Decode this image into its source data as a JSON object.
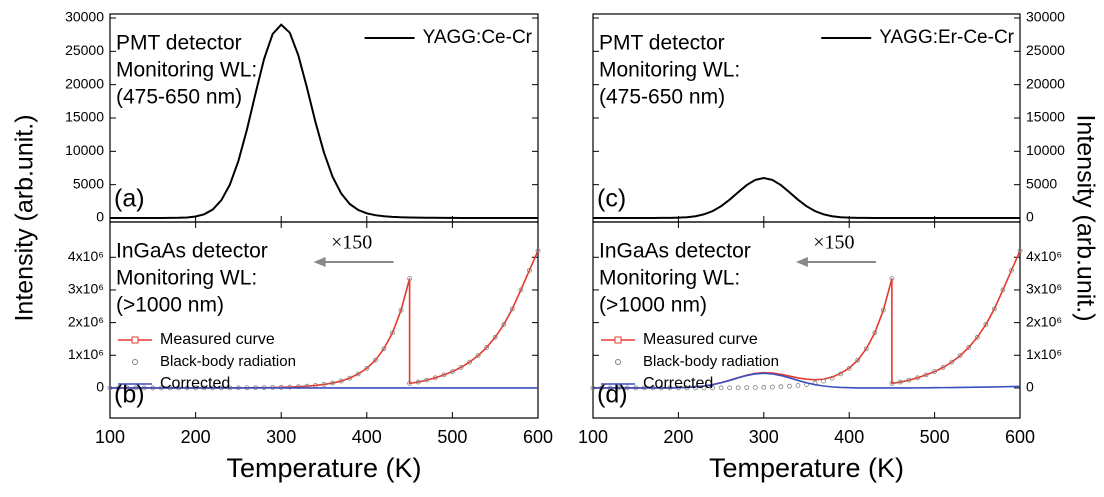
{
  "chart_data": [
    {
      "type": "line",
      "text_lines": [
        "PMT detector",
        "Monitoring WL:",
        "(475-650 nm)"
      ],
      "panel_label": "(a)",
      "ylabel": "Intensity (arb.unit.)",
      "yaxis_side": "left",
      "x": [
        100,
        110,
        120,
        130,
        140,
        150,
        160,
        170,
        180,
        190,
        200,
        210,
        220,
        230,
        240,
        250,
        260,
        270,
        280,
        290,
        300,
        310,
        320,
        330,
        340,
        350,
        360,
        370,
        380,
        390,
        400,
        410,
        420,
        430,
        440,
        450,
        460,
        470,
        480,
        490,
        500,
        510,
        520,
        530,
        540,
        550,
        560,
        570,
        580,
        590,
        600
      ],
      "series": [
        {
          "name": "YAGG:Ce-Cr",
          "color": "#000000",
          "values": [
            0,
            0,
            0,
            0,
            0,
            0,
            0,
            10,
            30,
            80,
            220,
            555,
            1270,
            2650,
            5000,
            8560,
            13280,
            18680,
            23860,
            27600,
            29000,
            27800,
            24400,
            19600,
            14400,
            9800,
            6200,
            3700,
            2100,
            1200,
            700,
            420,
            260,
            170,
            110,
            80,
            60,
            40,
            30,
            20,
            10,
            0,
            0,
            0,
            0,
            0,
            0,
            0,
            0,
            0,
            0
          ]
        }
      ],
      "xlim": [
        100,
        600
      ],
      "ylim": [
        -600,
        30600
      ],
      "yticks": [
        0,
        5000,
        10000,
        15000,
        20000,
        25000,
        30000
      ]
    },
    {
      "type": "line",
      "text_lines": [
        "InGaAs detector",
        "Monitoring WL:",
        "(>1000 nm)"
      ],
      "panel_label": "(b)",
      "note": "×150",
      "xlabel": "Temperature (K)",
      "yaxis_side": "left",
      "x": [
        100,
        110,
        120,
        130,
        140,
        150,
        160,
        170,
        180,
        190,
        200,
        210,
        220,
        230,
        240,
        250,
        260,
        270,
        280,
        290,
        300,
        310,
        320,
        330,
        340,
        350,
        360,
        370,
        380,
        390,
        400,
        410,
        420,
        430,
        440,
        450,
        450,
        460,
        470,
        480,
        490,
        500,
        510,
        520,
        530,
        540,
        550,
        560,
        570,
        580,
        590,
        600
      ],
      "series": [
        {
          "name": "Measured curve",
          "color": "#e8392e",
          "marker": "square",
          "values": [
            0,
            0,
            0,
            0,
            0,
            0,
            0,
            0,
            0,
            0,
            0,
            0,
            0,
            0,
            0,
            3500,
            5000,
            7000,
            10000,
            14000,
            19000,
            27000,
            38000,
            54000,
            76000,
            107000,
            150000,
            210000,
            300000,
            430000,
            600000,
            850000,
            1200000,
            1690000,
            2380000,
            3350000,
            140000,
            180000,
            240000,
            310000,
            400000,
            500000,
            630000,
            790000,
            990000,
            1240000,
            1550000,
            1940000,
            2420000,
            3000000,
            3600000,
            4200000
          ]
        },
        {
          "name": "Black-body radiation",
          "color": "#808080",
          "marker": "circle",
          "linestyle": "none",
          "values": [
            0,
            0,
            0,
            0,
            0,
            0,
            0,
            0,
            0,
            0,
            0,
            0,
            0,
            0,
            0,
            3500,
            5000,
            7000,
            10000,
            14000,
            19000,
            27000,
            38000,
            54000,
            76000,
            107000,
            150000,
            210000,
            300000,
            430000,
            600000,
            850000,
            1200000,
            1690000,
            2380000,
            3350000,
            140000,
            180000,
            240000,
            310000,
            400000,
            500000,
            630000,
            790000,
            990000,
            1240000,
            1550000,
            1940000,
            2420000,
            3000000,
            3600000,
            4200000
          ]
        },
        {
          "name": "Corrected",
          "color": "#3a4fc0",
          "values": [
            0,
            0,
            0,
            0,
            0,
            0,
            0,
            0,
            0,
            0,
            0,
            0,
            0,
            0,
            0,
            0,
            0,
            0,
            0,
            0,
            0,
            0,
            0,
            0,
            0,
            0,
            0,
            0,
            0,
            0,
            0,
            0,
            0,
            0,
            0,
            0,
            0,
            0,
            0,
            0,
            0,
            0,
            0,
            0,
            0,
            0,
            0,
            0,
            0,
            0,
            0,
            0
          ]
        }
      ],
      "xlim": [
        100,
        600
      ],
      "xticks": [
        100,
        200,
        300,
        400,
        500,
        600
      ],
      "ylim": [
        -920000,
        5080000
      ],
      "yticks": [
        0,
        {
          "value": 1000000,
          "label": "1x10⁶"
        },
        {
          "value": 2000000,
          "label": "2x10⁶"
        },
        {
          "value": 3000000,
          "label": "3x10⁶"
        },
        {
          "value": 4000000,
          "label": "4x10⁶"
        }
      ]
    },
    {
      "type": "line",
      "text_lines": [
        "PMT detector",
        "Monitoring WL:",
        "(475-650 nm)"
      ],
      "panel_label": "(c)",
      "ylabel": "Intensity (arb.unit.)",
      "yaxis_side": "right",
      "x": [
        100,
        110,
        120,
        130,
        140,
        150,
        160,
        170,
        180,
        190,
        200,
        210,
        220,
        230,
        240,
        250,
        260,
        270,
        280,
        290,
        300,
        310,
        320,
        330,
        340,
        350,
        360,
        370,
        380,
        390,
        400,
        410,
        420,
        430,
        440,
        450,
        460,
        470,
        480,
        490,
        500,
        510,
        520,
        530,
        540,
        550,
        560,
        570,
        580,
        590,
        600
      ],
      "series": [
        {
          "name": "YAGG:Er-Ce-Cr",
          "color": "#000000",
          "values": [
            0,
            0,
            0,
            0,
            0,
            0,
            0,
            0,
            10,
            20,
            50,
            115,
            265,
            550,
            1030,
            1770,
            2750,
            3860,
            4940,
            5710,
            6000,
            5710,
            4940,
            3860,
            2750,
            1770,
            1030,
            550,
            265,
            115,
            50,
            20,
            10,
            0,
            0,
            0,
            0,
            0,
            0,
            0,
            0,
            0,
            0,
            0,
            0,
            0,
            0,
            0,
            0,
            0,
            0
          ]
        }
      ],
      "xlim": [
        100,
        600
      ],
      "ylim": [
        -600,
        30600
      ],
      "yticks": [
        0,
        5000,
        10000,
        15000,
        20000,
        25000,
        30000
      ]
    },
    {
      "type": "line",
      "text_lines": [
        "InGaAs detector",
        "Monitoring WL:",
        "(>1000 nm)"
      ],
      "panel_label": "(d)",
      "note": "×150",
      "xlabel": "Temperature (K)",
      "yaxis_side": "right",
      "x": [
        100,
        110,
        120,
        130,
        140,
        150,
        160,
        170,
        180,
        190,
        200,
        210,
        220,
        230,
        240,
        250,
        260,
        270,
        280,
        290,
        300,
        310,
        320,
        330,
        340,
        350,
        360,
        370,
        380,
        390,
        400,
        410,
        420,
        430,
        440,
        450,
        450,
        460,
        470,
        480,
        490,
        500,
        510,
        520,
        530,
        540,
        550,
        560,
        570,
        580,
        590,
        600
      ],
      "series": [
        {
          "name": "Measured curve",
          "color": "#e8392e",
          "marker": "square",
          "values": [
            0,
            0,
            0,
            0,
            0,
            0,
            0,
            0,
            0,
            0,
            8000,
            17000,
            33000,
            60000,
            100000,
            163500,
            235000,
            317000,
            390000,
            444000,
            469000,
            457000,
            418000,
            364000,
            306000,
            267000,
            250000,
            270000,
            333000,
            447000,
            608000,
            850000,
            1200000,
            1690000,
            2380000,
            3350000,
            140000,
            180000,
            240000,
            310000,
            400000,
            500000,
            630000,
            790000,
            990000,
            1240000,
            1550000,
            1940000,
            2420000,
            3000000,
            3600000,
            4200000
          ]
        },
        {
          "name": "Black-body radiation",
          "color": "#808080",
          "marker": "circle",
          "linestyle": "none",
          "values": [
            0,
            0,
            0,
            0,
            0,
            0,
            0,
            0,
            0,
            0,
            0,
            0,
            0,
            0,
            0,
            3500,
            5000,
            7000,
            10000,
            14000,
            19000,
            27000,
            38000,
            54000,
            76000,
            107000,
            150000,
            210000,
            300000,
            430000,
            600000,
            850000,
            1200000,
            1690000,
            2380000,
            3350000,
            140000,
            180000,
            240000,
            310000,
            400000,
            500000,
            630000,
            790000,
            990000,
            1240000,
            1550000,
            1940000,
            2420000,
            3000000,
            3600000,
            4200000
          ]
        },
        {
          "name": "Corrected",
          "color": "#3a4fc0",
          "values": [
            0,
            0,
            0,
            0,
            0,
            0,
            0,
            0,
            0,
            0,
            8000,
            17000,
            33000,
            60000,
            100000,
            160000,
            230000,
            310000,
            380000,
            430000,
            450000,
            430000,
            380000,
            310000,
            230000,
            160000,
            100000,
            60000,
            33000,
            17000,
            8000,
            0,
            0,
            0,
            0,
            0,
            0,
            0,
            0,
            2000,
            5000,
            8000,
            10000,
            12000,
            15000,
            18000,
            22000,
            26000,
            31000,
            37000,
            43000,
            50000
          ]
        }
      ],
      "xlim": [
        100,
        600
      ],
      "xticks": [
        100,
        200,
        300,
        400,
        500,
        600
      ],
      "ylim": [
        -920000,
        5080000
      ],
      "yticks": [
        0,
        {
          "value": 1000000,
          "label": "1x10⁶"
        },
        {
          "value": 2000000,
          "label": "2x10⁶"
        },
        {
          "value": 3000000,
          "label": "3x10⁶"
        },
        {
          "value": 4000000,
          "label": "4x10⁶"
        }
      ]
    }
  ]
}
